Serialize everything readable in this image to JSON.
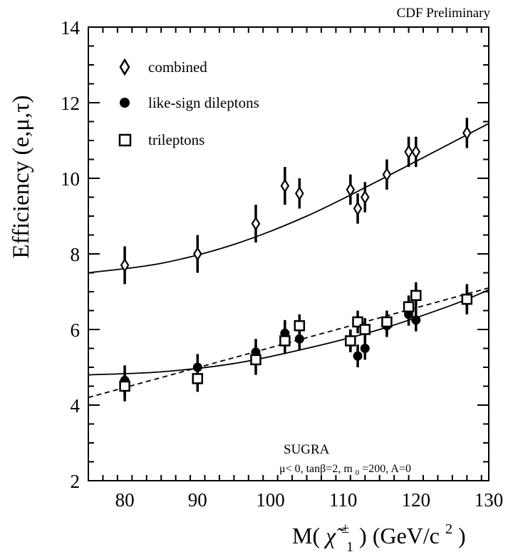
{
  "header": "CDF Preliminary",
  "chart_data": {
    "type": "scatter",
    "ylabel": "Efficiency (e,μ,τ)",
    "xlabel": {
      "prefix": "M(",
      "symbol": "χ̃",
      "sup": "±",
      "sub": "1",
      "suffix": ") (GeV/c",
      "unit_sup": "2",
      "close": ")"
    },
    "xlim": [
      75,
      130
    ],
    "ylim": [
      2,
      14
    ],
    "xticks": [
      80,
      90,
      100,
      110,
      120,
      130
    ],
    "yticks": [
      2,
      4,
      6,
      8,
      10,
      12,
      14
    ],
    "legend_placement": "top-left",
    "series": [
      {
        "name": "combined",
        "marker": "open-diamond",
        "points": [
          {
            "x": 80,
            "y": 7.7,
            "err": 0.5
          },
          {
            "x": 90,
            "y": 8.0,
            "err": 0.5
          },
          {
            "x": 98,
            "y": 8.8,
            "err": 0.5
          },
          {
            "x": 102,
            "y": 9.8,
            "err": 0.5
          },
          {
            "x": 104,
            "y": 9.6,
            "err": 0.4
          },
          {
            "x": 111,
            "y": 9.7,
            "err": 0.4
          },
          {
            "x": 112,
            "y": 9.2,
            "err": 0.4
          },
          {
            "x": 113,
            "y": 9.5,
            "err": 0.4
          },
          {
            "x": 116,
            "y": 10.1,
            "err": 0.4
          },
          {
            "x": 119,
            "y": 10.7,
            "err": 0.4
          },
          {
            "x": 120,
            "y": 10.7,
            "err": 0.4
          },
          {
            "x": 127,
            "y": 11.2,
            "err": 0.4
          }
        ],
        "fit": [
          [
            75,
            7.5
          ],
          [
            85,
            7.75
          ],
          [
            95,
            8.25
          ],
          [
            105,
            9.0
          ],
          [
            115,
            9.95
          ],
          [
            125,
            10.95
          ],
          [
            130,
            11.45
          ]
        ]
      },
      {
        "name": "like-sign dileptons",
        "marker": "filled-circle",
        "points": [
          {
            "x": 80,
            "y": 4.65,
            "err": 0.4
          },
          {
            "x": 90,
            "y": 5.0,
            "err": 0.35
          },
          {
            "x": 98,
            "y": 5.4,
            "err": 0.35
          },
          {
            "x": 102,
            "y": 5.9,
            "err": 0.35
          },
          {
            "x": 104,
            "y": 5.75,
            "err": 0.3
          },
          {
            "x": 111,
            "y": 5.7,
            "err": 0.3
          },
          {
            "x": 112,
            "y": 5.3,
            "err": 0.3
          },
          {
            "x": 113,
            "y": 5.5,
            "err": 0.3
          },
          {
            "x": 116,
            "y": 6.1,
            "err": 0.3
          },
          {
            "x": 119,
            "y": 6.4,
            "err": 0.3
          },
          {
            "x": 120,
            "y": 6.25,
            "err": 0.3
          },
          {
            "x": 127,
            "y": 6.8,
            "err": 0.4
          }
        ],
        "fit": [
          [
            75,
            4.8
          ],
          [
            85,
            4.88
          ],
          [
            95,
            5.1
          ],
          [
            105,
            5.5
          ],
          [
            115,
            6.0
          ],
          [
            125,
            6.65
          ],
          [
            130,
            7.05
          ]
        ]
      },
      {
        "name": "trileptons",
        "marker": "open-square",
        "points": [
          {
            "x": 80,
            "y": 4.5,
            "err": 0.4
          },
          {
            "x": 90,
            "y": 4.7,
            "err": 0.35
          },
          {
            "x": 98,
            "y": 5.2,
            "err": 0.4
          },
          {
            "x": 102,
            "y": 5.7,
            "err": 0.35
          },
          {
            "x": 104,
            "y": 6.1,
            "err": 0.3
          },
          {
            "x": 111,
            "y": 5.7,
            "err": 0.3
          },
          {
            "x": 112,
            "y": 6.2,
            "err": 0.3
          },
          {
            "x": 113,
            "y": 6.0,
            "err": 0.3
          },
          {
            "x": 116,
            "y": 6.2,
            "err": 0.3
          },
          {
            "x": 119,
            "y": 6.6,
            "err": 0.3
          },
          {
            "x": 120,
            "y": 6.9,
            "err": 0.35
          },
          {
            "x": 127,
            "y": 6.8,
            "err": 0.3
          }
        ],
        "fit_style": "dashed",
        "fit": [
          [
            75,
            4.2
          ],
          [
            130,
            7.1
          ]
        ]
      }
    ],
    "annotations": {
      "model": "SUGRA",
      "params": {
        "mu": "μ< 0, tanβ=2, m",
        "m_sub": "0",
        "rest": "=200, A=0"
      }
    }
  }
}
